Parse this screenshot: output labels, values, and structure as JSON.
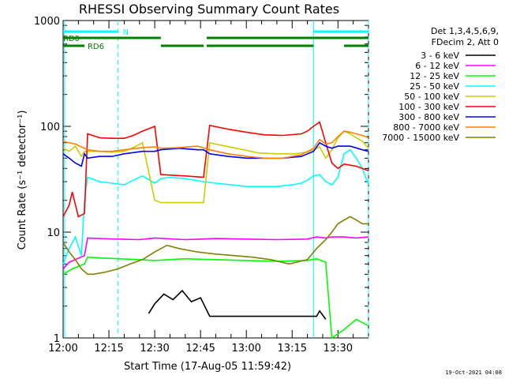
{
  "chart_data": {
    "type": "line",
    "title": "RHESSI Observing Summary Count Rates",
    "xlabel": "Start Time (17-Aug-05 11:59:42)",
    "ylabel": "Count Rate (s⁻¹ detector⁻¹)",
    "y_scale": "log",
    "ylim": [
      1,
      1000
    ],
    "xlim_minutes": [
      0,
      100
    ],
    "x_tick_labels": [
      "12:00",
      "12:15",
      "12:30",
      "12:45",
      "13:00",
      "13:15",
      "13:30"
    ],
    "x_tick_minutes": [
      0,
      15,
      30,
      45,
      60,
      75,
      90
    ],
    "y_tick_labels": [
      "1",
      "10",
      "100",
      "1000"
    ],
    "y_tick_values": [
      1,
      10,
      100,
      1000
    ],
    "legend_header": [
      "Det 1,3,4,5,6,9,",
      "FDecim 2, Att 0"
    ],
    "legend_position": "right",
    "flags": [
      {
        "label": "N",
        "color": "#00ffff",
        "segments": [
          [
            0,
            18
          ],
          [
            82,
            100
          ]
        ]
      },
      {
        "label": "RD0",
        "color": "#008000",
        "segments": [
          [
            0,
            32
          ],
          [
            47,
            82
          ],
          [
            82,
            100
          ]
        ]
      },
      {
        "label": "RD6",
        "color": "#008000",
        "segments": [
          [
            0,
            7
          ],
          [
            32,
            46
          ],
          [
            47,
            82
          ],
          [
            92,
            100
          ]
        ]
      }
    ],
    "vertical_lines": [
      {
        "minute": 0.5,
        "color": "#00ffff",
        "style": "solid"
      },
      {
        "minute": 18,
        "color": "#00ffff",
        "style": "dashed"
      },
      {
        "minute": 82,
        "color": "#00ffff",
        "style": "solid"
      },
      {
        "minute": 100,
        "color": "#00ffff",
        "style": "dashed"
      }
    ],
    "series": [
      {
        "name": "3 - 6 keV",
        "color": "#000000",
        "x": [
          28,
          30,
          33,
          36,
          39,
          42,
          45,
          48,
          83,
          84,
          86
        ],
        "y": [
          1.7,
          2.1,
          2.6,
          2.3,
          2.8,
          2.2,
          2.4,
          1.6,
          1.6,
          1.8,
          1.5
        ]
      },
      {
        "name": "6 - 12 keV",
        "color": "#ff00ff",
        "x": [
          0,
          2,
          7,
          8,
          12,
          18,
          25,
          30,
          40,
          50,
          60,
          70,
          80,
          83,
          86,
          88,
          92,
          96,
          100
        ],
        "y": [
          4.5,
          5.2,
          6.0,
          8.8,
          8.7,
          8.6,
          8.5,
          8.8,
          8.5,
          8.7,
          8.6,
          8.5,
          8.6,
          9.0,
          8.8,
          9.0,
          9.0,
          8.8,
          9.0
        ]
      },
      {
        "name": "12 - 25 keV",
        "color": "#00ff00",
        "x": [
          0,
          3,
          7,
          8,
          12,
          18,
          25,
          30,
          40,
          50,
          60,
          70,
          80,
          83,
          86,
          88,
          92,
          96,
          100
        ],
        "y": [
          4.0,
          4.5,
          5.0,
          5.8,
          5.7,
          5.6,
          5.5,
          5.4,
          5.6,
          5.5,
          5.4,
          5.3,
          5.4,
          5.6,
          5.2,
          1.0,
          1.2,
          1.5,
          1.3
        ]
      },
      {
        "name": "25 - 50 keV",
        "color": "#00ffff",
        "x": [
          0,
          2,
          4,
          6,
          7,
          8,
          12,
          16,
          20,
          23,
          26,
          30,
          32,
          35,
          40,
          46,
          50,
          55,
          60,
          65,
          70,
          75,
          78,
          80,
          82,
          84,
          86,
          88,
          90,
          92,
          94,
          96,
          98,
          100
        ],
        "y": [
          5.0,
          7.0,
          9.0,
          6.0,
          20,
          33,
          30,
          29,
          28,
          31,
          34,
          29,
          32,
          33,
          32,
          30,
          29,
          28,
          27,
          27,
          27,
          28,
          29,
          31,
          34,
          35,
          30,
          28,
          33,
          55,
          60,
          50,
          40,
          28
        ]
      },
      {
        "name": "50 - 100 keV",
        "color": "#cccc00",
        "x": [
          0,
          2,
          4,
          6,
          7,
          8,
          12,
          16,
          20,
          23,
          26,
          30,
          32,
          40,
          46,
          48,
          52,
          58,
          64,
          70,
          76,
          80,
          82,
          84,
          86,
          88,
          90,
          92,
          94,
          96,
          98,
          100
        ],
        "y": [
          62,
          58,
          65,
          52,
          58,
          58,
          58,
          57,
          58,
          63,
          70,
          20,
          19,
          19,
          19,
          70,
          66,
          61,
          56,
          55,
          55,
          57,
          60,
          64,
          50,
          60,
          78,
          90,
          85,
          78,
          72,
          62
        ]
      },
      {
        "name": "100 - 300 keV",
        "color": "#ff0000",
        "x": [
          0,
          2,
          3,
          5,
          7,
          8,
          12,
          16,
          20,
          23,
          26,
          30,
          32,
          40,
          46,
          48,
          54,
          60,
          66,
          72,
          78,
          80,
          82,
          84,
          86,
          88,
          90,
          92,
          96,
          100
        ],
        "y": [
          14,
          18,
          24,
          14,
          15,
          85,
          78,
          77,
          77,
          82,
          90,
          100,
          35,
          34,
          33,
          102,
          94,
          88,
          83,
          82,
          85,
          90,
          100,
          110,
          70,
          45,
          40,
          44,
          42,
          38
        ]
      },
      {
        "name": "300 - 800 keV",
        "color": "#0000ff",
        "x": [
          0,
          2,
          4,
          6,
          7,
          8,
          12,
          16,
          20,
          26,
          30,
          32,
          38,
          44,
          46,
          48,
          54,
          60,
          66,
          72,
          78,
          82,
          84,
          86,
          88,
          90,
          94,
          98,
          100
        ],
        "y": [
          55,
          50,
          45,
          42,
          55,
          50,
          52,
          52,
          55,
          58,
          58,
          60,
          62,
          60,
          60,
          55,
          52,
          50,
          50,
          50,
          52,
          58,
          70,
          65,
          62,
          65,
          65,
          60,
          58
        ]
      },
      {
        "name": "800 - 7000 keV",
        "color": "#ff8000",
        "x": [
          0,
          4,
          8,
          12,
          16,
          20,
          26,
          30,
          32,
          38,
          44,
          48,
          54,
          60,
          66,
          72,
          78,
          82,
          84,
          86,
          88,
          90,
          92,
          94,
          96,
          98,
          100
        ],
        "y": [
          72,
          68,
          60,
          58,
          58,
          60,
          63,
          64,
          62,
          63,
          65,
          60,
          55,
          52,
          50,
          50,
          54,
          62,
          75,
          68,
          70,
          80,
          90,
          88,
          85,
          82,
          78
        ]
      },
      {
        "name": "7000 - 15000 keV",
        "color": "#808000",
        "x": [
          0,
          2,
          4,
          6,
          8,
          10,
          14,
          18,
          22,
          26,
          30,
          34,
          38,
          44,
          50,
          56,
          62,
          68,
          74,
          80,
          83,
          86,
          88,
          90,
          92,
          94,
          96,
          98,
          100
        ],
        "y": [
          8.0,
          6.5,
          5.5,
          4.5,
          4.0,
          4.0,
          4.2,
          4.5,
          5.0,
          5.5,
          6.5,
          7.5,
          7.0,
          6.5,
          6.2,
          6.0,
          5.8,
          5.5,
          5.0,
          5.5,
          7.0,
          8.5,
          10,
          12,
          13,
          14,
          13,
          12,
          12
        ]
      }
    ]
  },
  "footer": {
    "timestamp": "19-Oct-2021 04:08"
  }
}
